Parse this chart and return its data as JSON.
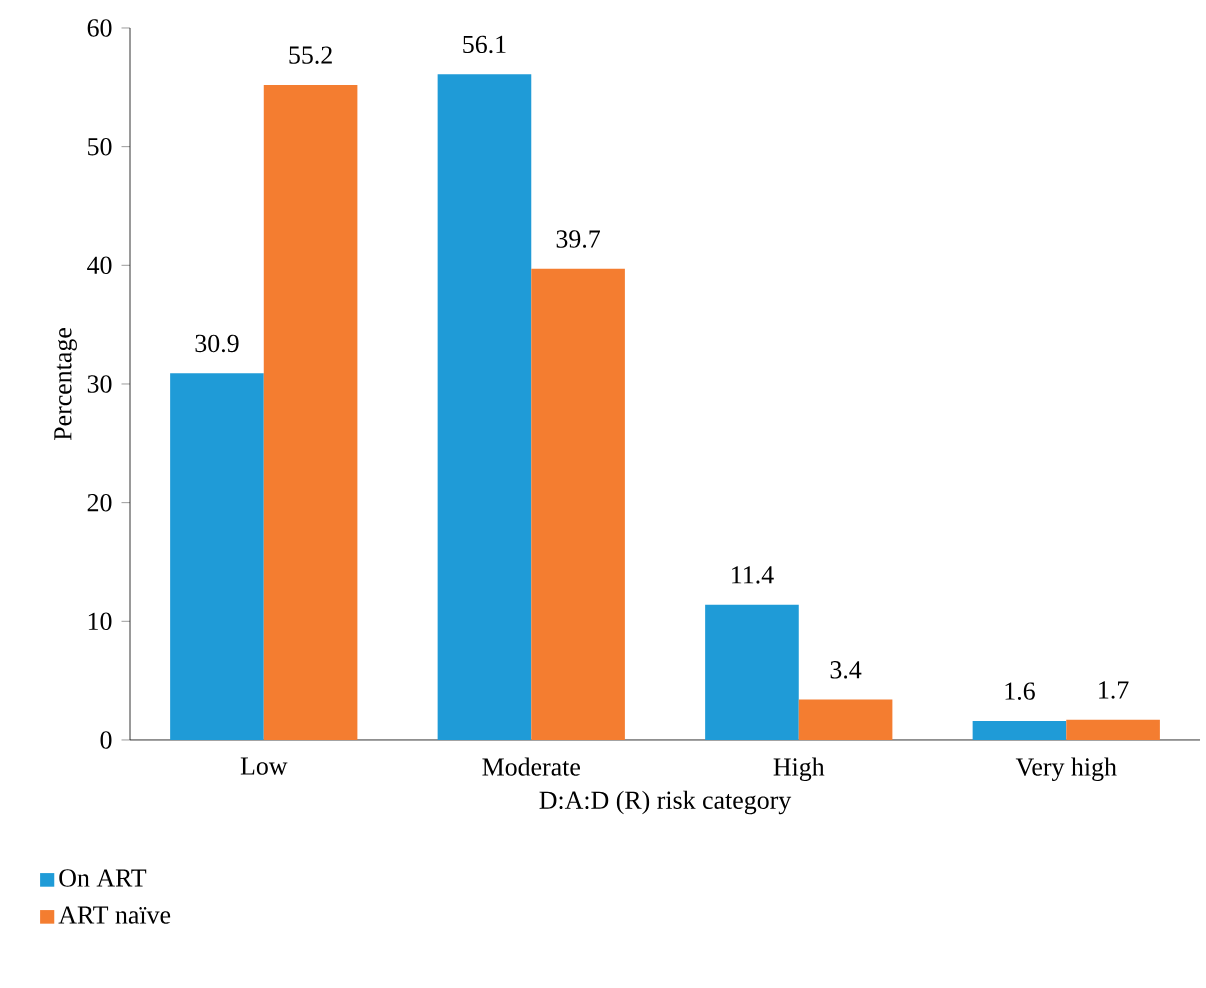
{
  "chart_data": {
    "type": "bar",
    "xlabel": "D:A:D (R) risk category",
    "ylabel": "Percentage",
    "categories": [
      "Low",
      "Moderate",
      "High",
      "Very high"
    ],
    "series": [
      {
        "name": "On ART",
        "color": "#1f9bd7",
        "values": [
          30.9,
          56.1,
          11.4,
          1.6
        ]
      },
      {
        "name": "ART naïve",
        "color": "#f47d30",
        "values": [
          55.2,
          39.7,
          3.4,
          1.7
        ]
      }
    ],
    "ylim": [
      0,
      60
    ],
    "yticks": [
      0,
      10,
      20,
      30,
      40,
      50,
      60
    ],
    "data_labels": true,
    "legend": "bottom left"
  }
}
